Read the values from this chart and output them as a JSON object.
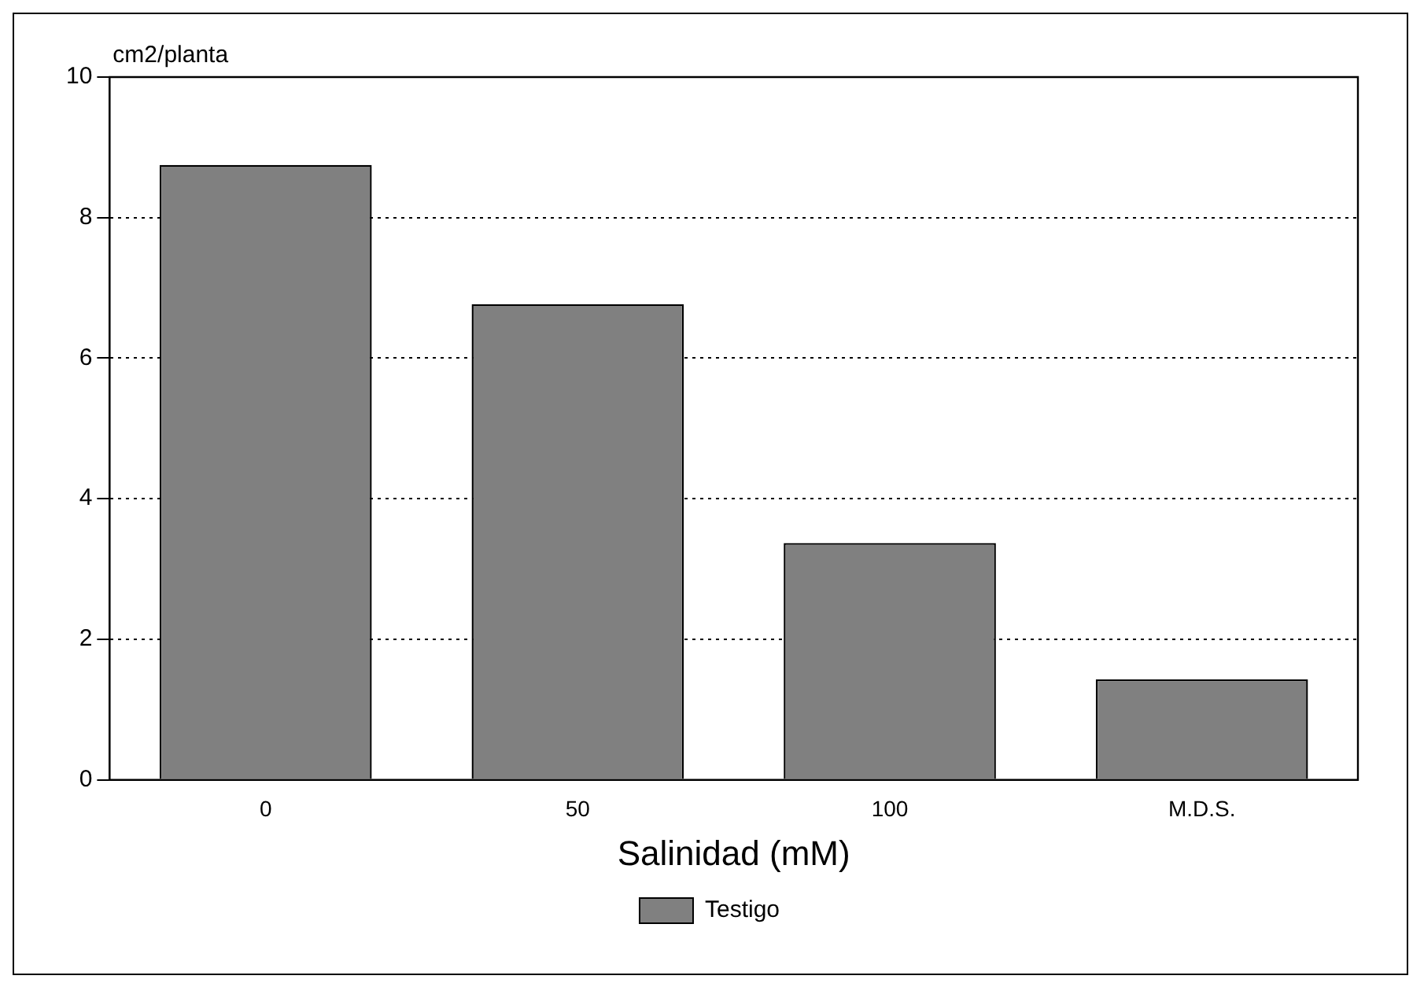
{
  "chart_data": {
    "type": "bar",
    "ylabel": "cm2/planta",
    "xlabel": "Salinidad (mM)",
    "categories": [
      "0",
      "50",
      "100",
      "M.D.S."
    ],
    "series": [
      {
        "name": "Testigo",
        "color": "#808080",
        "values": [
          8.75,
          6.77,
          3.37,
          1.43
        ]
      }
    ],
    "ylim": [
      0,
      10
    ],
    "yticks": [
      0,
      2,
      4,
      6,
      8,
      10
    ],
    "grid": "y",
    "legend": "bottom"
  }
}
